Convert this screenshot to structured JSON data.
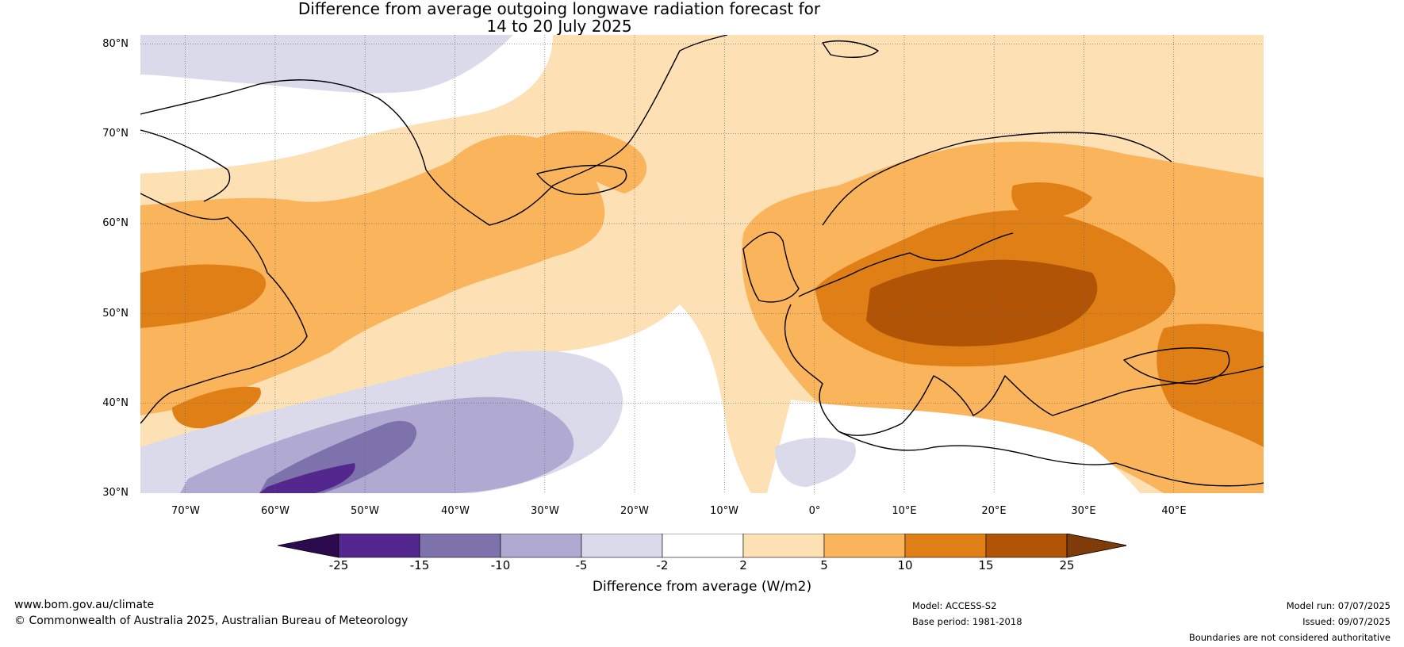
{
  "title": {
    "line1": "Difference from average outgoing longwave radiation forecast for",
    "line2": "14 to 20 July 2025"
  },
  "map": {
    "lat_labels": [
      "80°N",
      "70°N",
      "60°N",
      "50°N",
      "40°N",
      "30°N"
    ],
    "lon_labels": [
      "70°W",
      "60°W",
      "50°W",
      "40°W",
      "30°W",
      "20°W",
      "10°W",
      "0°",
      "10°E",
      "20°E",
      "30°E",
      "40°E"
    ],
    "extent": {
      "lon": [
        -75,
        50
      ],
      "lat": [
        30,
        81
      ]
    },
    "gridlines": true
  },
  "colorbar": {
    "ticks": [
      "-25",
      "-15",
      "-10",
      "-5",
      "-2",
      "2",
      "5",
      "10",
      "15",
      "25"
    ],
    "colors": [
      "#2d0a4e",
      "#54278f",
      "#7e72ad",
      "#b0a9d2",
      "#dadaeb",
      "#ffffff",
      "#fde0b4",
      "#fab45c",
      "#e07f15",
      "#b15406",
      "#7f3b08"
    ],
    "label": "Difference from average (W/m2)"
  },
  "footer": {
    "website": "www.bom.gov.au/climate",
    "copyright": "© Commonwealth of Australia 2025, Australian Bureau of Meteorology",
    "model": "Model: ACCESS-S2",
    "base_period": "Base period: 1981-2018",
    "model_run": "Model run: 07/07/2025",
    "issued": "Issued: 09/07/2025",
    "disclaimer": "Boundaries are not considered authoritative"
  }
}
